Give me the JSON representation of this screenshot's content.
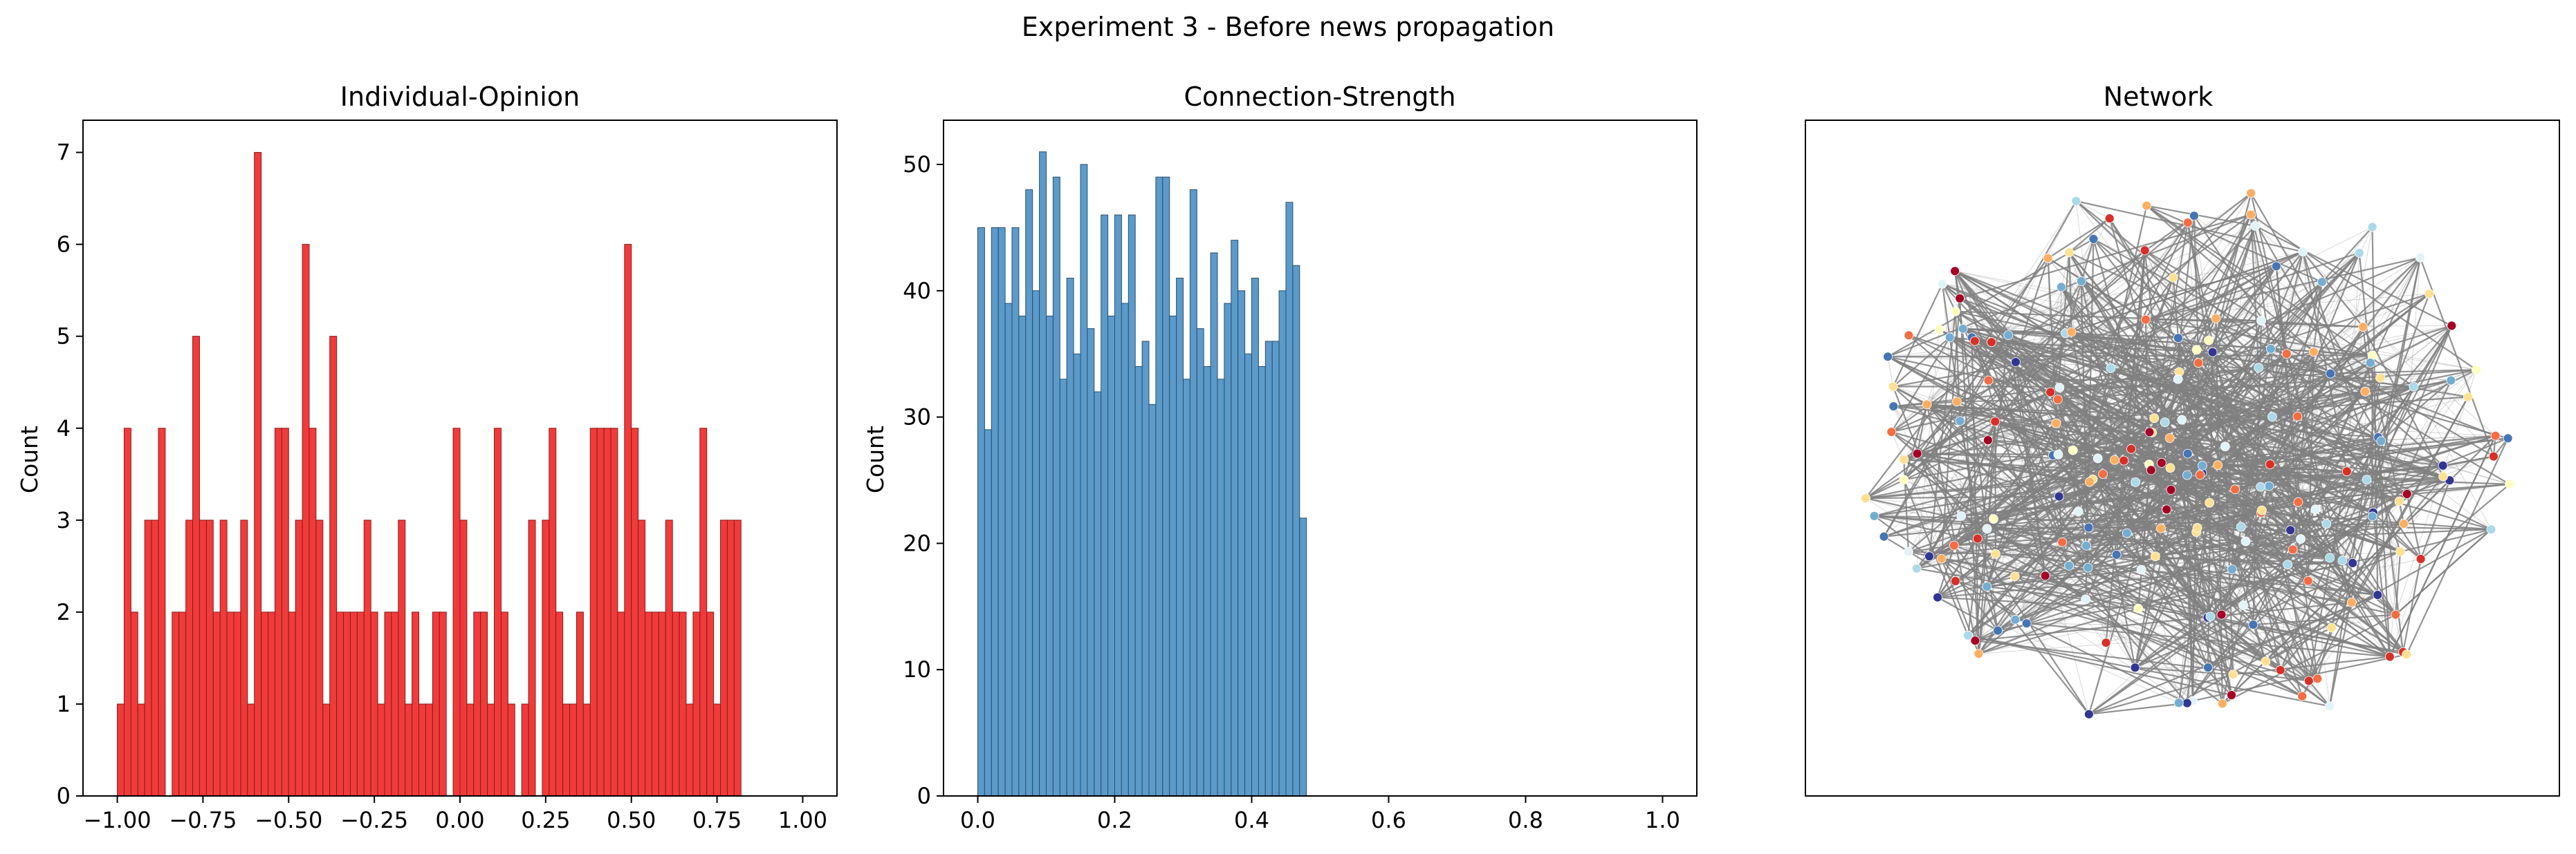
{
  "figure": {
    "title": "Experiment 3 - Before news propagation"
  },
  "chart_data": [
    {
      "type": "bar",
      "title": "Individual-Opinion",
      "xlabel": "",
      "ylabel": "Count",
      "xlim": [
        -1.1,
        1.1
      ],
      "ylim": [
        0,
        7.35
      ],
      "xticks": [
        -1.0,
        -0.75,
        -0.5,
        -0.25,
        0.0,
        0.25,
        0.5,
        0.75,
        1.0
      ],
      "xtick_labels": [
        "−1.00",
        "−0.75",
        "−0.50",
        "−0.25",
        "0.00",
        "0.25",
        "0.50",
        "0.75",
        "1.00"
      ],
      "yticks": [
        0,
        1,
        2,
        3,
        4,
        5,
        6,
        7
      ],
      "bin_start": -1.0,
      "bin_width": 0.02,
      "values": [
        1,
        4,
        2,
        1,
        3,
        3,
        4,
        0,
        2,
        2,
        3,
        5,
        3,
        3,
        2,
        3,
        2,
        2,
        3,
        1,
        7,
        2,
        2,
        4,
        4,
        2,
        3,
        6,
        4,
        3,
        1,
        5,
        2,
        2,
        2,
        2,
        3,
        2,
        1,
        2,
        2,
        3,
        1,
        2,
        1,
        1,
        2,
        2,
        0,
        4,
        3,
        1,
        2,
        2,
        1,
        4,
        2,
        1,
        0,
        1,
        3,
        0,
        3,
        4,
        2,
        1,
        1,
        2,
        1,
        4,
        4,
        4,
        4,
        2,
        6,
        4,
        3,
        2,
        2,
        2,
        3,
        2,
        2,
        1,
        2,
        4,
        2,
        1,
        3,
        3,
        3
      ],
      "color": "#f03b3b",
      "edgecolor": "#8b1a1a"
    },
    {
      "type": "bar",
      "title": "Connection-Strength",
      "xlabel": "",
      "ylabel": "Count",
      "xlim": [
        -0.05,
        1.05
      ],
      "ylim": [
        0,
        53.5
      ],
      "xticks": [
        0.0,
        0.2,
        0.4,
        0.6,
        0.8,
        1.0
      ],
      "xtick_labels": [
        "0.0",
        "0.2",
        "0.4",
        "0.6",
        "0.8",
        "1.0"
      ],
      "yticks": [
        0,
        10,
        20,
        30,
        40,
        50
      ],
      "bin_start": 0.0,
      "bin_width": 0.01,
      "values": [
        45,
        29,
        45,
        45,
        39,
        45,
        38,
        48,
        40,
        51,
        38,
        49,
        33,
        41,
        35,
        50,
        37,
        32,
        46,
        38,
        46,
        39,
        46,
        34,
        36,
        31,
        49,
        49,
        38,
        41,
        33,
        48,
        37,
        34,
        43,
        33,
        39,
        44,
        40,
        35,
        41,
        34,
        36,
        36,
        40,
        47,
        42,
        22
      ],
      "color": "#5b9ac9",
      "edgecolor": "#2b4f6e"
    },
    {
      "type": "network",
      "title": "Network",
      "node_count": 220,
      "node_palette": [
        "#a50026",
        "#d73027",
        "#f46d43",
        "#fdae61",
        "#fee090",
        "#ffffbf",
        "#e0f3f8",
        "#abd9e9",
        "#74add1",
        "#4575b4",
        "#313695"
      ],
      "edge_color": "#808080"
    }
  ]
}
